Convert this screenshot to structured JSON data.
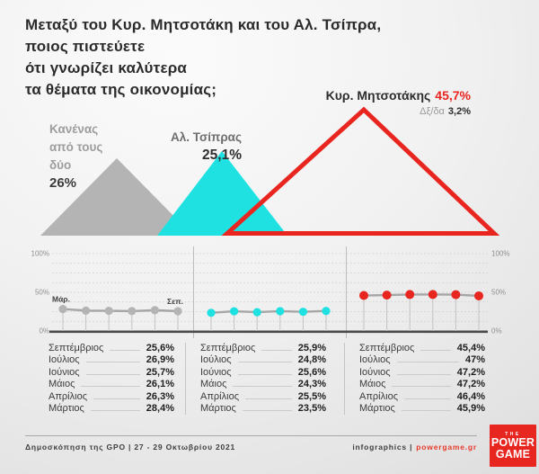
{
  "title": "Μεταξύ του Κυρ. Μητσοτάκη και του Αλ. Τσίπρα,\nποιος πιστεύετε\nότι γνωρίζει καλύτερα\nτα θέματα της οικονομίας;",
  "poll": {
    "none": {
      "label": "Κανένας\nαπό τους\nδύο",
      "value": "26%"
    },
    "tsipras": {
      "label": "Αλ. Τσίπρας",
      "value": "25,1%"
    },
    "mitsotakis": {
      "label": "Κυρ. Μητσοτάκης",
      "value": "45,7%"
    },
    "dontknow": {
      "label": "Δξ/δα",
      "value": "3,2%"
    }
  },
  "colors": {
    "gray_triangle": "#b4b4b4",
    "cyan_triangle": "#20e1e1",
    "red_accent": "#e8251f",
    "trend_line": "#a6a6a6"
  },
  "chart_data": {
    "type": "line",
    "title": "Μεταξύ του Κυρ. Μητσοτάκη και του Αλ. Τσίπρα, ποιος πιστεύετε ότι γνωρίζει καλύτερα τα θέματα της οικονομίας;",
    "categories": [
      "Μάρτιος",
      "Απρίλιος",
      "Μάιος",
      "Ιούνιος",
      "Ιούλιος",
      "Σεπτέμβριος"
    ],
    "series": [
      {
        "name": "Κανένας από τους δύο",
        "color": "#b4b4b4",
        "values": [
          28.4,
          26.3,
          26.1,
          25.7,
          26.9,
          25.6
        ]
      },
      {
        "name": "Αλ. Τσίπρας",
        "color": "#20e1e1",
        "values": [
          23.5,
          25.5,
          24.3,
          25.6,
          24.8,
          25.9
        ]
      },
      {
        "name": "Κυρ. Μητσοτάκης",
        "color": "#e8251f",
        "values": [
          45.9,
          46.4,
          47.2,
          47.2,
          47.0,
          45.4
        ]
      }
    ],
    "current": {
      "mitsotakis": 45.7,
      "tsipras": 25.1,
      "none": 26.0,
      "dontknow": 3.2
    },
    "ylim": [
      0,
      100
    ],
    "yticks": [
      "100%",
      "50%",
      "0%"
    ],
    "grid": "dotted-horizontal",
    "legend_position": "none",
    "annotations": {
      "first": "Μάρ.",
      "last": "Σεπ."
    }
  },
  "tables": {
    "months": [
      "Σεπτέμβριος",
      "Ιούλιος",
      "Ιούνιος",
      "Μάιος",
      "Απρίλιος",
      "Μάρτιος"
    ],
    "columns": [
      {
        "series": "Κανένας από τους δύο",
        "values": [
          "25,6%",
          "26,9%",
          "25,7%",
          "26,1%",
          "26,3%",
          "28,4%"
        ]
      },
      {
        "series": "Αλ. Τσίπρας",
        "values": [
          "25,9%",
          "24,8%",
          "25,6%",
          "24,3%",
          "25,5%",
          "23,5%"
        ]
      },
      {
        "series": "Κυρ. Μητσοτάκης",
        "values": [
          "45,4%",
          "47%",
          "47,2%",
          "47,2%",
          "46,4%",
          "45,9%"
        ]
      }
    ]
  },
  "footer": {
    "source": "Δημοσκόπηση της GPO | 27 - 29 Οκτωβρίου 2021",
    "credit_label": "infographics |",
    "credit_site": "powergame.gr",
    "logo": {
      "line1": "THE",
      "line2": "POWER",
      "line3": "GAME"
    }
  }
}
